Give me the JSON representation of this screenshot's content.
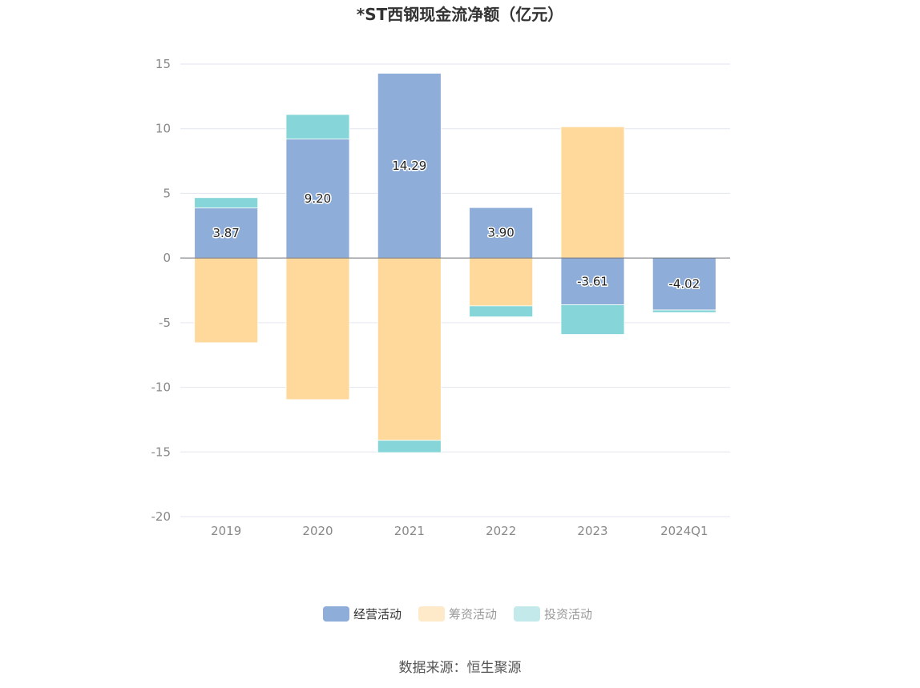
{
  "chart_data": {
    "type": "bar",
    "stacked": true,
    "title": "*ST西钢现金流净额（亿元）",
    "categories": [
      "2019",
      "2020",
      "2021",
      "2022",
      "2023",
      "2024Q1"
    ],
    "series": [
      {
        "name": "经营活动",
        "color": "#8eadd9",
        "values": [
          3.87,
          9.2,
          14.29,
          3.9,
          -3.61,
          -4.02
        ],
        "labels": [
          "3.87",
          "9.20",
          "14.29",
          "3.90",
          "-3.61",
          "-4.02"
        ]
      },
      {
        "name": "筹资活动",
        "color": "#fed99b",
        "values": [
          -6.55,
          -10.95,
          -14.1,
          -3.7,
          10.15,
          0
        ],
        "labels": [
          "",
          "",
          "",
          "",
          "",
          ""
        ]
      },
      {
        "name": "投资活动",
        "color": "#86d5d8",
        "values": [
          0.8,
          1.9,
          -0.95,
          -0.85,
          -2.3,
          -0.2
        ],
        "labels": [
          "",
          "",
          "",
          "",
          "",
          ""
        ]
      }
    ],
    "ylim": [
      -20,
      15
    ],
    "yticks": [
      15,
      10,
      5,
      0,
      -5,
      -10,
      -15,
      -20
    ],
    "legend_position": "bottom",
    "legend_colors": [
      "#8eadd9",
      "#fee9c8",
      "#c3e9ea"
    ],
    "legend_text_colors": [
      "#333333",
      "#999999",
      "#999999"
    ],
    "grid": true,
    "xlabel": "",
    "ylabel": ""
  },
  "source_text": "数据来源：恒生聚源"
}
